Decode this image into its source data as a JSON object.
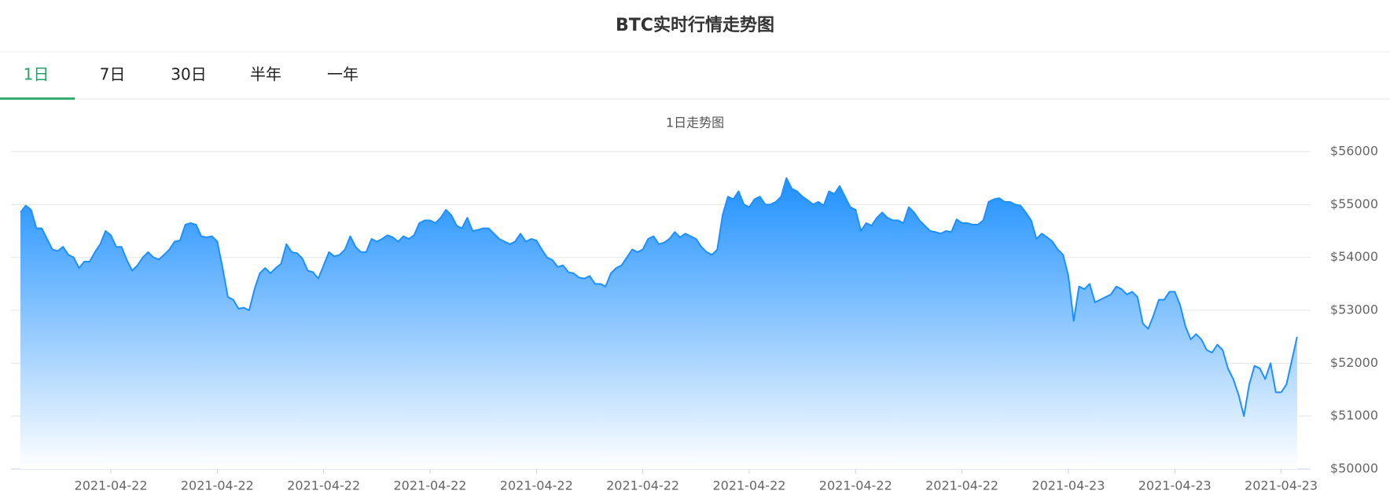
{
  "header": {
    "title": "BTC实时行情走势图"
  },
  "tabs": [
    "1日",
    "7日",
    "30日",
    "半年",
    "一年"
  ],
  "active_tab": 0,
  "chart_data": {
    "type": "area",
    "subtitle": "1日走势图",
    "color": "#1e90ff",
    "grid": true,
    "ylim": [
      50000,
      56000
    ],
    "yticks": [
      {
        "value": 50000,
        "label": "$50000"
      },
      {
        "value": 51000,
        "label": "$51000"
      },
      {
        "value": 52000,
        "label": "$52000"
      },
      {
        "value": 53000,
        "label": "$53000"
      },
      {
        "value": 54000,
        "label": "$54000"
      },
      {
        "value": 55000,
        "label": "$55000"
      },
      {
        "value": 56000,
        "label": "$56000"
      }
    ],
    "categories": [
      null,
      null,
      null,
      null,
      null,
      null,
      null,
      null,
      null,
      null,
      null,
      null,
      null,
      null,
      null,
      null,
      null,
      "2021-04-22",
      null,
      null,
      null,
      null,
      null,
      null,
      null,
      null,
      null,
      null,
      null,
      null,
      null,
      null,
      null,
      null,
      null,
      null,
      null,
      "2021-04-22",
      null,
      null,
      null,
      null,
      null,
      null,
      null,
      null,
      null,
      null,
      null,
      null,
      null,
      null,
      null,
      null,
      null,
      null,
      null,
      "2021-04-22",
      null,
      null,
      null,
      null,
      null,
      null,
      null,
      null,
      null,
      null,
      null,
      null,
      null,
      null,
      null,
      null,
      null,
      null,
      null,
      "2021-04-22",
      null,
      null,
      null,
      null,
      null,
      null,
      null,
      null,
      null,
      null,
      null,
      null,
      null,
      null,
      null,
      null,
      null,
      null,
      null,
      "2021-04-22",
      null,
      null,
      null,
      null,
      null,
      null,
      null,
      null,
      null,
      null,
      null,
      null,
      null,
      null,
      null,
      null,
      null,
      null,
      null,
      "2021-04-22",
      null,
      null,
      null,
      null,
      null,
      null,
      null,
      null,
      null,
      null,
      null,
      null,
      null,
      null,
      null,
      null,
      null,
      null,
      null,
      "2021-04-22",
      null,
      null,
      null,
      null,
      null,
      null,
      null,
      null,
      null,
      null,
      null,
      null,
      null,
      null,
      null,
      null,
      null,
      null,
      null,
      "2021-04-22",
      null,
      null,
      null,
      null,
      null,
      null,
      null,
      null,
      null,
      null,
      null,
      null,
      null,
      null,
      null,
      null,
      null,
      null,
      null,
      "2021-04-22",
      null,
      null,
      null,
      null,
      null,
      null,
      null,
      null,
      null,
      null,
      null,
      null,
      null,
      null,
      null,
      null,
      null,
      null,
      null,
      "2021-04-23",
      null,
      null,
      null,
      null,
      null,
      null,
      null,
      null,
      null,
      null,
      null,
      null,
      null,
      null,
      null,
      null,
      null,
      null,
      null,
      "2021-04-23",
      null,
      null,
      null,
      null,
      null,
      null,
      null,
      null,
      null,
      null,
      null,
      null,
      null,
      null,
      null,
      null,
      null,
      null,
      null,
      "2021-04-23",
      null,
      null,
      null
    ],
    "values": [
      54850,
      54980,
      54900,
      54550,
      54550,
      54350,
      54150,
      54120,
      54200,
      54050,
      54000,
      53800,
      53920,
      53920,
      54100,
      54250,
      54500,
      54420,
      54200,
      54200,
      53950,
      53750,
      53850,
      54000,
      54100,
      54000,
      53960,
      54050,
      54150,
      54300,
      54320,
      54620,
      54650,
      54620,
      54400,
      54380,
      54400,
      54300,
      53800,
      53250,
      53200,
      53030,
      53050,
      53000,
      53400,
      53700,
      53800,
      53700,
      53800,
      53880,
      54250,
      54100,
      54080,
      53980,
      53750,
      53720,
      53600,
      53850,
      54100,
      54020,
      54050,
      54150,
      54400,
      54200,
      54100,
      54100,
      54350,
      54300,
      54350,
      54420,
      54380,
      54300,
      54400,
      54350,
      54420,
      54650,
      54700,
      54700,
      54650,
      54750,
      54900,
      54800,
      54600,
      54550,
      54750,
      54500,
      54520,
      54550,
      54550,
      54450,
      54350,
      54300,
      54250,
      54300,
      54450,
      54300,
      54350,
      54320,
      54150,
      54000,
      53950,
      53820,
      53850,
      53720,
      53700,
      53620,
      53600,
      53650,
      53500,
      53500,
      53450,
      53700,
      53800,
      53850,
      54000,
      54150,
      54100,
      54150,
      54350,
      54400,
      54250,
      54280,
      54350,
      54480,
      54380,
      54450,
      54400,
      54350,
      54200,
      54100,
      54050,
      54150,
      54800,
      55150,
      55100,
      55250,
      55000,
      54950,
      55100,
      55150,
      55000,
      55000,
      55050,
      55150,
      55500,
      55300,
      55250,
      55150,
      55080,
      55000,
      55050,
      54980,
      55250,
      55200,
      55350,
      55150,
      54950,
      54900,
      54500,
      54650,
      54600,
      54750,
      54850,
      54750,
      54700,
      54700,
      54650,
      54950,
      54850,
      54700,
      54600,
      54500,
      54480,
      54450,
      54500,
      54480,
      54720,
      54650,
      54650,
      54620,
      54620,
      54700,
      55050,
      55100,
      55120,
      55050,
      55050,
      55000,
      54980,
      54850,
      54700,
      54350,
      54450,
      54380,
      54300,
      54150,
      54050,
      53650,
      52800,
      53450,
      53400,
      53500,
      53150,
      53200,
      53250,
      53300,
      53450,
      53400,
      53300,
      53350,
      53250,
      52750,
      52650,
      52900,
      53200,
      53200,
      53350,
      53350,
      53100,
      52700,
      52450,
      52550,
      52450,
      52250,
      52200,
      52350,
      52250,
      51900,
      51700,
      51400,
      51000,
      51600,
      51950,
      51900,
      51700,
      52000,
      51450,
      51450,
      51600,
      52050,
      52500
    ]
  }
}
